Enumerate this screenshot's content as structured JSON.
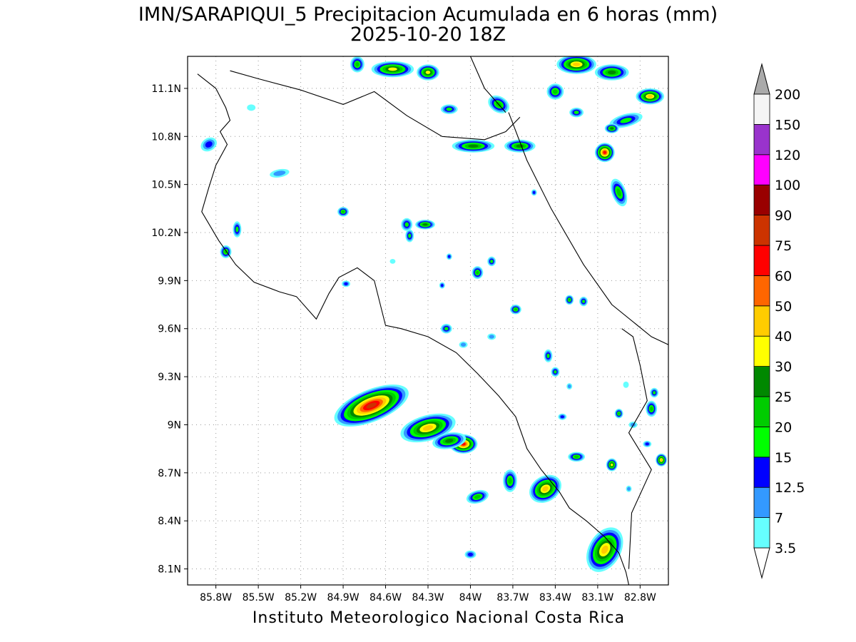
{
  "title": {
    "line1": "IMN/SARAPIQUI_5 Precipitacion Acumulada en 6 horas (mm)",
    "line2": "2025-10-20 18Z"
  },
  "footer": "Instituto Meteorologico Nacional Costa Rica",
  "map": {
    "lon_range": [
      -86.0,
      -82.6
    ],
    "lat_range": [
      8.0,
      11.3
    ],
    "lon_ticks": [
      {
        "value": -85.8,
        "label": "85.8W"
      },
      {
        "value": -85.5,
        "label": "85.5W"
      },
      {
        "value": -85.2,
        "label": "85.2W"
      },
      {
        "value": -84.9,
        "label": "84.9W"
      },
      {
        "value": -84.6,
        "label": "84.6W"
      },
      {
        "value": -84.3,
        "label": "84.3W"
      },
      {
        "value": -84.0,
        "label": "84W"
      },
      {
        "value": -83.7,
        "label": "83.7W"
      },
      {
        "value": -83.4,
        "label": "83.4W"
      },
      {
        "value": -83.1,
        "label": "83.1W"
      },
      {
        "value": -82.8,
        "label": "82.8W"
      }
    ],
    "lat_ticks": [
      {
        "value": 8.1,
        "label": "8.1N"
      },
      {
        "value": 8.4,
        "label": "8.4N"
      },
      {
        "value": 8.7,
        "label": "8.7N"
      },
      {
        "value": 9.0,
        "label": "9N"
      },
      {
        "value": 9.3,
        "label": "9.3N"
      },
      {
        "value": 9.6,
        "label": "9.6N"
      },
      {
        "value": 9.9,
        "label": "9.9N"
      },
      {
        "value": 10.2,
        "label": "10.2N"
      },
      {
        "value": 10.5,
        "label": "10.5N"
      },
      {
        "value": 10.8,
        "label": "10.8N"
      },
      {
        "value": 11.1,
        "label": "11.1N"
      }
    ],
    "grid": true,
    "coastline": [
      [
        -85.93,
        11.19
      ],
      [
        -85.8,
        11.1
      ],
      [
        -85.73,
        10.98
      ],
      [
        -85.7,
        10.9
      ],
      [
        -85.77,
        10.83
      ],
      [
        -85.72,
        10.75
      ],
      [
        -85.8,
        10.62
      ],
      [
        -85.85,
        10.48
      ],
      [
        -85.9,
        10.33
      ],
      [
        -85.78,
        10.15
      ],
      [
        -85.66,
        10.0
      ],
      [
        -85.53,
        9.89
      ],
      [
        -85.35,
        9.83
      ],
      [
        -85.23,
        9.8
      ],
      [
        -85.09,
        9.66
      ],
      [
        -85.0,
        9.82
      ],
      [
        -84.93,
        9.92
      ],
      [
        -84.8,
        9.98
      ],
      [
        -84.68,
        9.9
      ],
      [
        -84.6,
        9.62
      ],
      [
        -84.49,
        9.6
      ],
      [
        -84.3,
        9.55
      ],
      [
        -84.1,
        9.45
      ],
      [
        -83.95,
        9.32
      ],
      [
        -83.8,
        9.18
      ],
      [
        -83.68,
        9.05
      ],
      [
        -83.6,
        8.85
      ],
      [
        -83.5,
        8.72
      ],
      [
        -83.37,
        8.58
      ],
      [
        -83.3,
        8.48
      ],
      [
        -83.18,
        8.4
      ],
      [
        -83.05,
        8.3
      ],
      [
        -82.95,
        8.2
      ],
      [
        -82.9,
        8.08
      ],
      [
        -82.88,
        8.0
      ]
    ],
    "caribbean_coast": [
      [
        -83.73,
        10.95
      ],
      [
        -83.6,
        10.65
      ],
      [
        -83.43,
        10.35
      ],
      [
        -83.2,
        10.0
      ],
      [
        -83.0,
        9.75
      ],
      [
        -82.72,
        9.55
      ],
      [
        -82.6,
        9.5
      ]
    ],
    "nicaragua_border": [
      [
        -85.7,
        11.21
      ],
      [
        -85.5,
        11.16
      ],
      [
        -85.2,
        11.09
      ],
      [
        -84.9,
        11.0
      ],
      [
        -84.68,
        11.08
      ],
      [
        -84.45,
        10.93
      ],
      [
        -84.2,
        10.8
      ],
      [
        -83.9,
        10.78
      ],
      [
        -83.75,
        10.83
      ],
      [
        -83.65,
        10.92
      ]
    ],
    "panama_border": [
      [
        -82.93,
        9.6
      ],
      [
        -82.85,
        9.55
      ],
      [
        -82.8,
        9.37
      ],
      [
        -82.75,
        9.15
      ],
      [
        -82.88,
        8.95
      ],
      [
        -82.72,
        8.72
      ],
      [
        -82.86,
        8.45
      ],
      [
        -82.88,
        8.1
      ]
    ],
    "san_juan_river": [
      [
        -84.0,
        11.3
      ],
      [
        -83.9,
        11.1
      ],
      [
        -83.75,
        10.95
      ]
    ],
    "precip_cells": [
      {
        "lon": -84.7,
        "lat": 9.12,
        "rx": 0.28,
        "ry": 0.1,
        "rot": -22,
        "value": 75
      },
      {
        "lon": -84.3,
        "lat": 8.98,
        "rx": 0.2,
        "ry": 0.08,
        "rot": -15,
        "value": 40
      },
      {
        "lon": -84.05,
        "lat": 8.88,
        "rx": 0.1,
        "ry": 0.06,
        "rot": 0,
        "value": 60
      },
      {
        "lon": -84.15,
        "lat": 8.9,
        "rx": 0.12,
        "ry": 0.05,
        "rot": -10,
        "value": 25
      },
      {
        "lon": -83.05,
        "lat": 8.22,
        "rx": 0.17,
        "ry": 0.1,
        "rot": -60,
        "value": 40
      },
      {
        "lon": -83.47,
        "lat": 8.6,
        "rx": 0.12,
        "ry": 0.08,
        "rot": -30,
        "value": 40
      },
      {
        "lon": -83.72,
        "lat": 8.65,
        "rx": 0.05,
        "ry": 0.07,
        "rot": 0,
        "value": 20
      },
      {
        "lon": -83.95,
        "lat": 8.55,
        "rx": 0.08,
        "ry": 0.04,
        "rot": -15,
        "value": 20
      },
      {
        "lon": -83.25,
        "lat": 8.8,
        "rx": 0.06,
        "ry": 0.03,
        "rot": 0,
        "value": 20
      },
      {
        "lon": -83.0,
        "lat": 8.75,
        "rx": 0.04,
        "ry": 0.04,
        "rot": 0,
        "value": 30
      },
      {
        "lon": -82.65,
        "lat": 8.78,
        "rx": 0.04,
        "ry": 0.04,
        "rot": 0,
        "value": 40
      },
      {
        "lon": -82.72,
        "lat": 9.1,
        "rx": 0.04,
        "ry": 0.05,
        "rot": 0,
        "value": 20
      },
      {
        "lon": -83.05,
        "lat": 10.7,
        "rx": 0.07,
        "ry": 0.06,
        "rot": 0,
        "value": 60
      },
      {
        "lon": -82.95,
        "lat": 10.45,
        "rx": 0.05,
        "ry": 0.09,
        "rot": -20,
        "value": 20
      },
      {
        "lon": -82.73,
        "lat": 11.05,
        "rx": 0.1,
        "ry": 0.05,
        "rot": 0,
        "value": 40
      },
      {
        "lon": -83.25,
        "lat": 11.25,
        "rx": 0.14,
        "ry": 0.06,
        "rot": 0,
        "value": 40
      },
      {
        "lon": -83.0,
        "lat": 11.2,
        "rx": 0.12,
        "ry": 0.05,
        "rot": 0,
        "value": 25
      },
      {
        "lon": -84.55,
        "lat": 11.22,
        "rx": 0.15,
        "ry": 0.05,
        "rot": 0,
        "value": 30
      },
      {
        "lon": -84.3,
        "lat": 11.2,
        "rx": 0.08,
        "ry": 0.05,
        "rot": 0,
        "value": 30
      },
      {
        "lon": -84.8,
        "lat": 11.25,
        "rx": 0.05,
        "ry": 0.05,
        "rot": 0,
        "value": 20
      },
      {
        "lon": -83.98,
        "lat": 10.74,
        "rx": 0.15,
        "ry": 0.04,
        "rot": 0,
        "value": 25
      },
      {
        "lon": -83.65,
        "lat": 10.74,
        "rx": 0.11,
        "ry": 0.04,
        "rot": 0,
        "value": 25
      },
      {
        "lon": -83.4,
        "lat": 11.08,
        "rx": 0.06,
        "ry": 0.05,
        "rot": 0,
        "value": 20
      },
      {
        "lon": -82.9,
        "lat": 10.9,
        "rx": 0.12,
        "ry": 0.04,
        "rot": -15,
        "value": 15
      },
      {
        "lon": -83.0,
        "lat": 10.85,
        "rx": 0.05,
        "ry": 0.03,
        "rot": 0,
        "value": 25
      },
      {
        "lon": -83.25,
        "lat": 10.95,
        "rx": 0.05,
        "ry": 0.03,
        "rot": 0,
        "value": 15
      },
      {
        "lon": -84.15,
        "lat": 10.97,
        "rx": 0.06,
        "ry": 0.03,
        "rot": 0,
        "value": 15
      },
      {
        "lon": -83.8,
        "lat": 11.0,
        "rx": 0.08,
        "ry": 0.05,
        "rot": 30,
        "value": 20
      },
      {
        "lon": -84.32,
        "lat": 10.25,
        "rx": 0.07,
        "ry": 0.03,
        "rot": 0,
        "value": 25
      },
      {
        "lon": -84.45,
        "lat": 10.25,
        "rx": 0.04,
        "ry": 0.04,
        "rot": 0,
        "value": 15
      },
      {
        "lon": -84.43,
        "lat": 10.18,
        "rx": 0.03,
        "ry": 0.04,
        "rot": 0,
        "value": 15
      },
      {
        "lon": -84.9,
        "lat": 10.33,
        "rx": 0.04,
        "ry": 0.03,
        "rot": 0,
        "value": 20
      },
      {
        "lon": -85.65,
        "lat": 10.22,
        "rx": 0.03,
        "ry": 0.05,
        "rot": 0,
        "value": 15
      },
      {
        "lon": -85.73,
        "lat": 10.08,
        "rx": 0.04,
        "ry": 0.04,
        "rot": 0,
        "value": 20
      },
      {
        "lon": -85.85,
        "lat": 10.75,
        "rx": 0.06,
        "ry": 0.04,
        "rot": -30,
        "value": 12.5
      },
      {
        "lon": -85.35,
        "lat": 10.57,
        "rx": 0.07,
        "ry": 0.025,
        "rot": -10,
        "value": 7
      },
      {
        "lon": -85.55,
        "lat": 10.98,
        "rx": 0.03,
        "ry": 0.02,
        "rot": 0,
        "value": 3.5
      },
      {
        "lon": -83.95,
        "lat": 9.95,
        "rx": 0.04,
        "ry": 0.04,
        "rot": 0,
        "value": 20
      },
      {
        "lon": -83.85,
        "lat": 10.02,
        "rx": 0.03,
        "ry": 0.03,
        "rot": 0,
        "value": 15
      },
      {
        "lon": -83.68,
        "lat": 9.72,
        "rx": 0.04,
        "ry": 0.03,
        "rot": 0,
        "value": 20
      },
      {
        "lon": -83.45,
        "lat": 9.43,
        "rx": 0.03,
        "ry": 0.04,
        "rot": 0,
        "value": 15
      },
      {
        "lon": -83.4,
        "lat": 9.33,
        "rx": 0.03,
        "ry": 0.03,
        "rot": 0,
        "value": 15
      },
      {
        "lon": -83.3,
        "lat": 9.78,
        "rx": 0.03,
        "ry": 0.03,
        "rot": 0,
        "value": 20
      },
      {
        "lon": -83.2,
        "lat": 9.77,
        "rx": 0.03,
        "ry": 0.03,
        "rot": 0,
        "value": 15
      },
      {
        "lon": -84.17,
        "lat": 9.6,
        "rx": 0.04,
        "ry": 0.03,
        "rot": 0,
        "value": 15
      },
      {
        "lon": -84.2,
        "lat": 9.87,
        "rx": 0.02,
        "ry": 0.02,
        "rot": 0,
        "value": 12.5
      },
      {
        "lon": -83.35,
        "lat": 9.05,
        "rx": 0.03,
        "ry": 0.02,
        "rot": 0,
        "value": 12.5
      },
      {
        "lon": -82.95,
        "lat": 9.07,
        "rx": 0.03,
        "ry": 0.03,
        "rot": 0,
        "value": 20
      },
      {
        "lon": -82.85,
        "lat": 9.0,
        "rx": 0.03,
        "ry": 0.02,
        "rot": 0,
        "value": 7
      },
      {
        "lon": -84.0,
        "lat": 8.19,
        "rx": 0.04,
        "ry": 0.025,
        "rot": 0,
        "value": 12.5
      },
      {
        "lon": -83.3,
        "lat": 9.24,
        "rx": 0.02,
        "ry": 0.02,
        "rot": 0,
        "value": 7
      },
      {
        "lon": -84.88,
        "lat": 9.88,
        "rx": 0.03,
        "ry": 0.02,
        "rot": 0,
        "value": 12.5
      },
      {
        "lon": -83.55,
        "lat": 10.45,
        "rx": 0.02,
        "ry": 0.02,
        "rot": 0,
        "value": 12.5
      },
      {
        "lon": -84.05,
        "lat": 9.5,
        "rx": 0.03,
        "ry": 0.02,
        "rot": 0,
        "value": 7
      },
      {
        "lon": -84.15,
        "lat": 10.05,
        "rx": 0.02,
        "ry": 0.02,
        "rot": 0,
        "value": 12.5
      },
      {
        "lon": -83.85,
        "lat": 9.55,
        "rx": 0.03,
        "ry": 0.02,
        "rot": 0,
        "value": 7
      },
      {
        "lon": -84.55,
        "lat": 10.02,
        "rx": 0.02,
        "ry": 0.015,
        "rot": 0,
        "value": 3.5
      },
      {
        "lon": -82.7,
        "lat": 9.2,
        "rx": 0.03,
        "ry": 0.03,
        "rot": 0,
        "value": 15
      },
      {
        "lon": -82.9,
        "lat": 9.25,
        "rx": 0.02,
        "ry": 0.02,
        "rot": 0,
        "value": 3.5
      },
      {
        "lon": -82.75,
        "lat": 8.88,
        "rx": 0.03,
        "ry": 0.02,
        "rot": 0,
        "value": 12.5
      },
      {
        "lon": -82.88,
        "lat": 8.6,
        "rx": 0.02,
        "ry": 0.02,
        "rot": 0,
        "value": 7
      }
    ]
  },
  "colorbar": {
    "levels": [
      {
        "label": "3.5",
        "color": "#66ffff"
      },
      {
        "label": "7",
        "color": "#3399ff"
      },
      {
        "label": "12.5",
        "color": "#0000ff"
      },
      {
        "label": "15",
        "color": "#00ff00"
      },
      {
        "label": "20",
        "color": "#00cc00"
      },
      {
        "label": "25",
        "color": "#008800"
      },
      {
        "label": "30",
        "color": "#ffff00"
      },
      {
        "label": "40",
        "color": "#ffcc00"
      },
      {
        "label": "50",
        "color": "#ff6600"
      },
      {
        "label": "60",
        "color": "#ff0000"
      },
      {
        "label": "75",
        "color": "#cc3300"
      },
      {
        "label": "90",
        "color": "#990000"
      },
      {
        "label": "100",
        "color": "#ff00ff"
      },
      {
        "label": "120",
        "color": "#9933cc"
      },
      {
        "label": "150",
        "color": "#f5f5f5"
      },
      {
        "label": "200",
        "color": "#aaaaaa"
      }
    ],
    "value_colors": [
      {
        "min": 3.5,
        "color": "#66ffff"
      },
      {
        "min": 7,
        "color": "#3399ff"
      },
      {
        "min": 12.5,
        "color": "#0000ff"
      },
      {
        "min": 15,
        "color": "#00ff00"
      },
      {
        "min": 20,
        "color": "#00cc00"
      },
      {
        "min": 25,
        "color": "#008800"
      },
      {
        "min": 30,
        "color": "#ffff00"
      },
      {
        "min": 40,
        "color": "#ffcc00"
      },
      {
        "min": 50,
        "color": "#ff6600"
      },
      {
        "min": 60,
        "color": "#ff0000"
      },
      {
        "min": 75,
        "color": "#cc3300"
      },
      {
        "min": 90,
        "color": "#990000"
      }
    ]
  }
}
